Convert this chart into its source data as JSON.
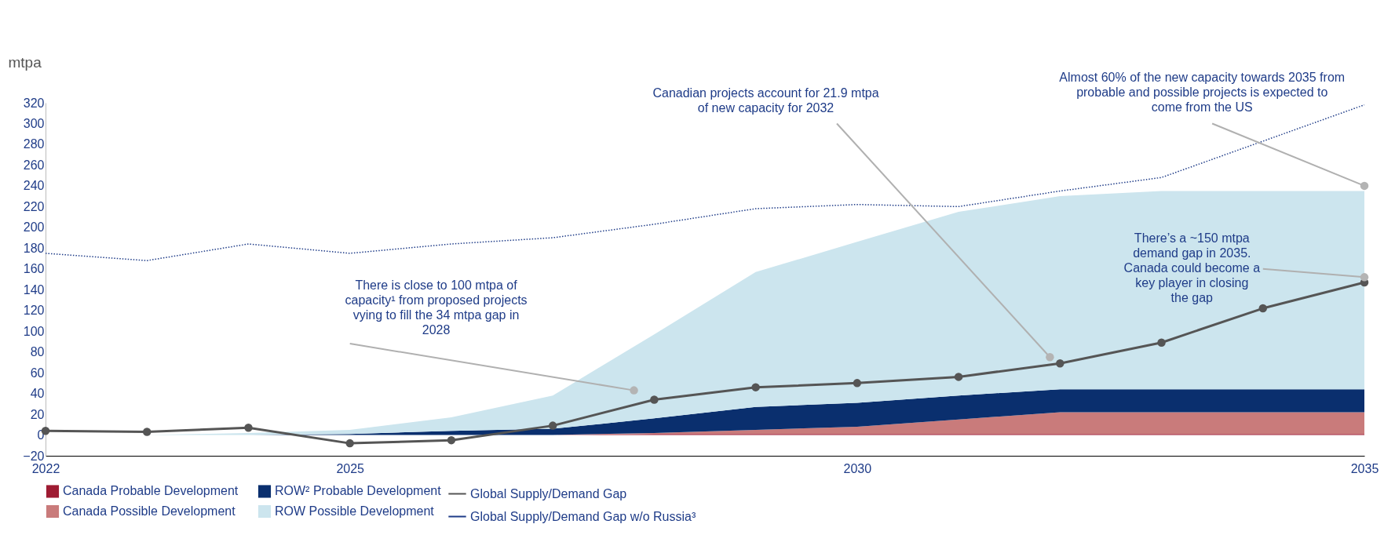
{
  "chart_data": {
    "type": "area",
    "ylabel": "mtpa",
    "x": [
      2022,
      2023,
      2024,
      2025,
      2026,
      2027,
      2028,
      2029,
      2030,
      2031,
      2032,
      2033,
      2034,
      2035
    ],
    "xlim": [
      2022,
      2035
    ],
    "xticks": [
      2022,
      2025,
      2030,
      2035
    ],
    "ylim": [
      -20,
      320
    ],
    "yticks": [
      -20,
      0,
      20,
      40,
      60,
      80,
      100,
      120,
      140,
      160,
      180,
      200,
      220,
      240,
      260,
      280,
      300,
      320
    ],
    "stacked": true,
    "grid": false,
    "legend": "bottom",
    "series": [
      {
        "name": "Canada Probable Development",
        "type": "area",
        "color": "#9e1b32",
        "values": [
          0,
          0,
          0,
          0,
          0,
          0,
          1,
          1,
          1,
          1,
          1,
          1,
          1,
          1
        ]
      },
      {
        "name": "Canada Possible Development",
        "type": "area",
        "color": "#c97b7b",
        "values": [
          0,
          0,
          0,
          0,
          0,
          0,
          1,
          4,
          7,
          14,
          21,
          21,
          21,
          21
        ]
      },
      {
        "name": "ROW² Probable Development",
        "type": "area",
        "color": "#0a2f6e",
        "values": [
          0,
          0,
          0,
          1,
          4,
          6,
          14,
          22,
          23,
          23,
          22,
          22,
          22,
          22
        ]
      },
      {
        "name": "ROW Possible Development",
        "type": "area",
        "color": "#cce5ee",
        "values": [
          0,
          0,
          2,
          4,
          13,
          32,
          81,
          130,
          155,
          177,
          186,
          191,
          191,
          191
        ]
      },
      {
        "name": "Global Supply/Demand Gap",
        "type": "line",
        "color": "#555555",
        "marker": "circle",
        "line_style": "solid",
        "values": [
          4,
          3,
          7,
          -8,
          -5,
          9,
          34,
          46,
          50,
          56,
          69,
          89,
          122,
          147
        ]
      },
      {
        "name": "Global Supply/Demand Gap w/o Russia³",
        "type": "line",
        "color": "#1f3c88",
        "marker": "none",
        "line_style": "dotted",
        "values": [
          175,
          168,
          184,
          175,
          184,
          190,
          203,
          218,
          222,
          220,
          235,
          248,
          283,
          318
        ]
      }
    ],
    "annotations": [
      {
        "text": "There is close to 100 mtpa of capacity¹ from proposed projects vying to fill the 34 mtpa gap in 2028",
        "x": 2027.8,
        "y": 43
      },
      {
        "text": "Canadian projects account for 21.9 mtpa of new capacity for 2032",
        "x": 2031.9,
        "y": 75
      },
      {
        "text": "Almost 60% of the new capacity towards 2035 from probable and possible projects is expected to come from the US",
        "x": 2035,
        "y": 240
      },
      {
        "text": "There’s a ~150 mtpa demand gap in 2035. Canada could become a key player in closing the gap",
        "x": 2035,
        "y": 152
      }
    ]
  }
}
